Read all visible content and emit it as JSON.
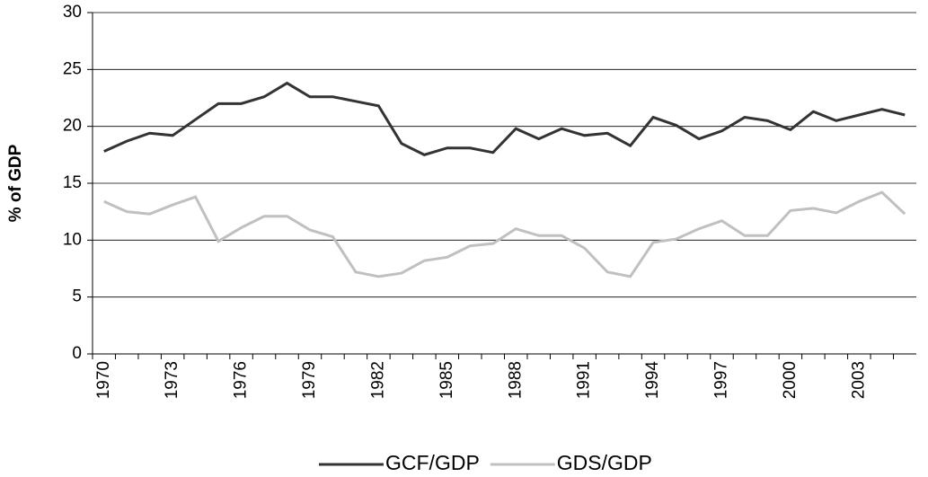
{
  "chart_data": {
    "type": "line",
    "ylabel": "% of GDP",
    "categories": [
      "1970",
      null,
      null,
      "1973",
      null,
      null,
      "1976",
      null,
      null,
      "1979",
      null,
      null,
      "1982",
      null,
      null,
      "1985",
      null,
      null,
      "1988",
      null,
      null,
      "1991",
      null,
      null,
      "1994",
      null,
      null,
      "1997",
      null,
      null,
      "2000",
      null,
      null,
      "2003",
      null,
      null
    ],
    "series": [
      {
        "name": "GCF/GDP",
        "color": "#333333",
        "values": [
          17.8,
          18.7,
          19.4,
          19.2,
          20.6,
          22.0,
          22.0,
          22.6,
          23.8,
          22.6,
          22.6,
          22.2,
          21.8,
          18.5,
          17.5,
          18.1,
          18.1,
          17.7,
          19.8,
          18.9,
          19.8,
          19.2,
          19.4,
          18.3,
          20.8,
          20.1,
          18.9,
          19.6,
          20.8,
          20.5,
          19.7,
          21.3,
          20.5,
          21.0,
          21.5,
          21.0
        ]
      },
      {
        "name": "GDS/GDP",
        "color": "#c0c0c0",
        "values": [
          13.4,
          12.5,
          12.3,
          13.1,
          13.8,
          9.9,
          11.1,
          12.1,
          12.1,
          10.9,
          10.3,
          7.2,
          6.8,
          7.1,
          8.2,
          8.5,
          9.5,
          9.7,
          11.0,
          10.4,
          10.4,
          9.3,
          7.2,
          6.8,
          9.8,
          10.1,
          11.0,
          11.7,
          10.4,
          10.4,
          12.6,
          12.8,
          12.4,
          13.4,
          14.2,
          12.3
        ]
      }
    ],
    "ylim": [
      0,
      30
    ],
    "yticks": [
      0,
      5,
      10,
      15,
      20,
      25,
      30
    ],
    "grid": true,
    "legend": "bottom"
  }
}
